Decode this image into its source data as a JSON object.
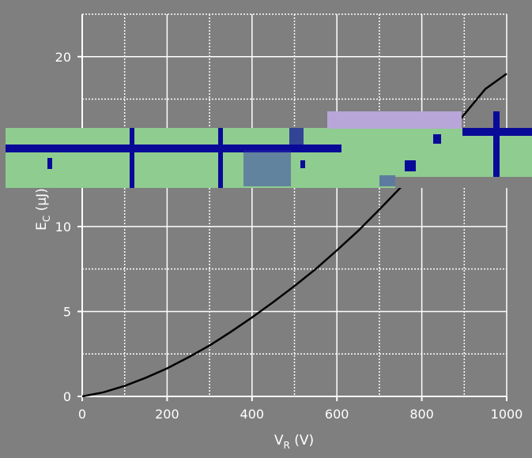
{
  "chart_data": {
    "type": "line",
    "title": "",
    "xlabel": "V_R (V)",
    "xlabel_main": "V",
    "xlabel_sub": "R",
    "xlabel_unit": " (V)",
    "ylabel": "E_C (μJ)",
    "ylabel_main": "E",
    "ylabel_sub": "C",
    "ylabel_unit": " (μJ)",
    "xlim": [
      0,
      1000
    ],
    "ylim": [
      0,
      22.5
    ],
    "x_ticks": [
      0,
      200,
      400,
      600,
      800,
      1000
    ],
    "y_ticks": [
      0,
      5,
      10,
      20
    ],
    "grid": true,
    "colors": {
      "curve": "#000000",
      "plot_bg": "#7f7f7f",
      "grid": "#ffffff",
      "band": "#8fcc8f",
      "glitch": "#0a0a99"
    },
    "series": [
      {
        "x": [
          0,
          50,
          100,
          150,
          200,
          250,
          300,
          350,
          400,
          450,
          500,
          550,
          600,
          650,
          700,
          750,
          800,
          850,
          900,
          950,
          1000
        ],
        "values": [
          0,
          0.24,
          0.62,
          1.1,
          1.65,
          2.3,
          3.0,
          3.8,
          4.65,
          5.55,
          6.5,
          7.5,
          8.6,
          9.75,
          11.0,
          12.3,
          13.7,
          15.1,
          16.6,
          18.1,
          19.0
        ]
      }
    ]
  }
}
